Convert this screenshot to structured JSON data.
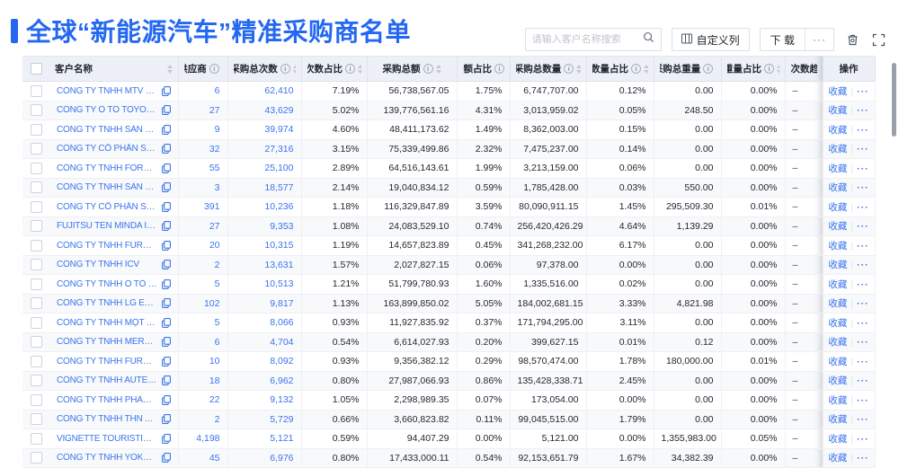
{
  "header": {
    "title": "全球“新能源汽车”精准采购商名单",
    "search_placeholder": "请输入客户名称搜索",
    "customize_columns_label": "自定义列",
    "download_label": "下 载",
    "toolbar_more_label": "···"
  },
  "icons": {
    "search": "magnifier",
    "customize_columns": "column-grid",
    "trash": "trash-can",
    "fullscreen": "expand-corners",
    "copy": "overlapping-squares",
    "info": "circled-i",
    "sort": "up-down-carets"
  },
  "colors": {
    "accent": "#2468f2",
    "link": "#3a74ee",
    "header_bg": "#edf0f6"
  },
  "table": {
    "columns": [
      {
        "key": "name",
        "label": "客户名称",
        "info": false,
        "sort": true
      },
      {
        "key": "supplier",
        "label": "供应商",
        "info": true,
        "sort": true
      },
      {
        "key": "purchases",
        "label": "采购总次数",
        "info": true,
        "sort": true
      },
      {
        "key": "purchase_pct",
        "label": "次数占比",
        "info": true,
        "sort": true
      },
      {
        "key": "amount",
        "label": "采购总额",
        "info": true,
        "sort": true
      },
      {
        "key": "amount_pct",
        "label": "总额占比",
        "info": true,
        "sort": true
      },
      {
        "key": "qty",
        "label": "采购总数量",
        "info": true,
        "sort": true
      },
      {
        "key": "qty_pct",
        "label": "数量占比",
        "info": true,
        "sort": true
      },
      {
        "key": "weight",
        "label": "采购总重量",
        "info": true,
        "sort": true
      },
      {
        "key": "weight_pct",
        "label": "重量占比",
        "info": true,
        "sort": true
      },
      {
        "key": "trend",
        "label": "次数趋势",
        "info": false,
        "sort": false
      },
      {
        "key": "ops",
        "label": "操作",
        "info": false,
        "sort": false
      }
    ],
    "row_actions": {
      "favorite": "收藏",
      "divider": "|",
      "more": "···"
    },
    "rows": [
      {
        "name": "CÔNG TY TNHH MTV SẢN XUẤ...",
        "supplier": "6",
        "purchases": "62,410",
        "purchase_pct": "7.19%",
        "amount": "56,738,567.05",
        "amount_pct": "1.75%",
        "qty": "6,747,707.00",
        "qty_pct": "0.12%",
        "weight": "0.00",
        "weight_pct": "0.00%",
        "trend": "–"
      },
      {
        "name": "CÔNG TY Ô TÔ TOYOTA VIỆT ...",
        "supplier": "27",
        "purchases": "43,629",
        "purchase_pct": "5.02%",
        "amount": "139,776,561.16",
        "amount_pct": "4.31%",
        "qty": "3,013,959.02",
        "qty_pct": "0.05%",
        "weight": "248.50",
        "weight_pct": "0.00%",
        "trend": "–"
      },
      {
        "name": "CÔNG TY TNHH SẢN XUẤT VÀ ...",
        "supplier": "9",
        "purchases": "39,974",
        "purchase_pct": "4.60%",
        "amount": "48,411,173.62",
        "amount_pct": "1.49%",
        "qty": "8,362,003.00",
        "qty_pct": "0.15%",
        "weight": "0.00",
        "weight_pct": "0.00%",
        "trend": "–"
      },
      {
        "name": "CÔNG TY CỔ PHẦN SẢN XUẤT...",
        "supplier": "32",
        "purchases": "27,316",
        "purchase_pct": "3.15%",
        "amount": "75,339,499.86",
        "amount_pct": "2.32%",
        "qty": "7,475,237.00",
        "qty_pct": "0.14%",
        "weight": "0.00",
        "weight_pct": "0.00%",
        "trend": "–"
      },
      {
        "name": "CÔNG TY TNHH FORD VIỆT NAM",
        "supplier": "55",
        "purchases": "25,100",
        "purchase_pct": "2.89%",
        "amount": "64,516,143.61",
        "amount_pct": "1.99%",
        "qty": "3,213,159.00",
        "qty_pct": "0.06%",
        "weight": "0.00",
        "weight_pct": "0.00%",
        "trend": "–"
      },
      {
        "name": "CÔNG TY TNHH SẢN XUẤT VÀ ...",
        "supplier": "3",
        "purchases": "18,577",
        "purchase_pct": "2.14%",
        "amount": "19,040,834.12",
        "amount_pct": "0.59%",
        "qty": "1,785,428.00",
        "qty_pct": "0.03%",
        "weight": "550.00",
        "weight_pct": "0.00%",
        "trend": "–"
      },
      {
        "name": "CÔNG TY CỔ PHẦN SẢN XUẤT...",
        "supplier": "391",
        "purchases": "10,236",
        "purchase_pct": "1.18%",
        "amount": "116,329,847.89",
        "amount_pct": "3.59%",
        "qty": "80,090,911.15",
        "qty_pct": "1.45%",
        "weight": "295,509.30",
        "weight_pct": "0.01%",
        "trend": "–"
      },
      {
        "name": "FUJITSU TEN MINDA INDIA PVT...",
        "supplier": "27",
        "purchases": "9,353",
        "purchase_pct": "1.08%",
        "amount": "24,083,529.10",
        "amount_pct": "0.74%",
        "qty": "256,420,426.29",
        "qty_pct": "4.64%",
        "weight": "1,139.29",
        "weight_pct": "0.00%",
        "trend": "–"
      },
      {
        "name": "CÔNG TY TNHH FURUKAWA A...",
        "supplier": "20",
        "purchases": "10,315",
        "purchase_pct": "1.19%",
        "amount": "14,657,823.89",
        "amount_pct": "0.45%",
        "qty": "341,268,232.00",
        "qty_pct": "6.17%",
        "weight": "0.00",
        "weight_pct": "0.00%",
        "trend": "–"
      },
      {
        "name": "CÔNG TY TNHH ICV",
        "supplier": "2",
        "purchases": "13,631",
        "purchase_pct": "1.57%",
        "amount": "2,027,827.15",
        "amount_pct": "0.06%",
        "qty": "97,378.00",
        "qty_pct": "0.00%",
        "weight": "0.00",
        "weight_pct": "0.00%",
        "trend": "–"
      },
      {
        "name": "CÔNG TY TNHH Ô TÔ MITSUBI...",
        "supplier": "5",
        "purchases": "10,513",
        "purchase_pct": "1.21%",
        "amount": "51,799,780.93",
        "amount_pct": "1.60%",
        "qty": "1,335,516.00",
        "qty_pct": "0.02%",
        "weight": "0.00",
        "weight_pct": "0.00%",
        "trend": "–"
      },
      {
        "name": "CÔNG TY TNHH LG ELECTRON...",
        "supplier": "102",
        "purchases": "9,817",
        "purchase_pct": "1.13%",
        "amount": "163,899,850.02",
        "amount_pct": "5.05%",
        "qty": "184,002,681.15",
        "qty_pct": "3.33%",
        "weight": "4,821.98",
        "weight_pct": "0.00%",
        "trend": "–"
      },
      {
        "name": "CÔNG TY TNHH MỘT THÀNH V...",
        "supplier": "5",
        "purchases": "8,066",
        "purchase_pct": "0.93%",
        "amount": "11,927,835.92",
        "amount_pct": "0.37%",
        "qty": "171,794,295.00",
        "qty_pct": "3.11%",
        "weight": "0.00",
        "weight_pct": "0.00%",
        "trend": "–"
      },
      {
        "name": "CÔNG TY TNHH MERCEDES–B...",
        "supplier": "6",
        "purchases": "4,704",
        "purchase_pct": "0.54%",
        "amount": "6,614,027.93",
        "amount_pct": "0.20%",
        "qty": "399,627.15",
        "qty_pct": "0.01%",
        "weight": "0.12",
        "weight_pct": "0.00%",
        "trend": "–"
      },
      {
        "name": "CÔNG TY TNHH FURUKAWA A...",
        "supplier": "10",
        "purchases": "8,092",
        "purchase_pct": "0.93%",
        "amount": "9,356,382.12",
        "amount_pct": "0.29%",
        "qty": "98,570,474.00",
        "qty_pct": "1.78%",
        "weight": "180,000.00",
        "weight_pct": "0.01%",
        "trend": "–"
      },
      {
        "name": "CÔNG TY TNHH AUTEL VIỆT N...",
        "supplier": "18",
        "purchases": "6,962",
        "purchase_pct": "0.80%",
        "amount": "27,987,066.93",
        "amount_pct": "0.86%",
        "qty": "135,428,338.71",
        "qty_pct": "2.45%",
        "weight": "0.00",
        "weight_pct": "0.00%",
        "trend": "–"
      },
      {
        "name": "CÔNG TY TNHH PHÂN PHỐI T...",
        "supplier": "22",
        "purchases": "9,132",
        "purchase_pct": "1.05%",
        "amount": "2,298,989.35",
        "amount_pct": "0.07%",
        "qty": "173,054.00",
        "qty_pct": "0.00%",
        "weight": "0.00",
        "weight_pct": "0.00%",
        "trend": "–"
      },
      {
        "name": "CÔNG TY TNHH THN AUTOPAR...",
        "supplier": "2",
        "purchases": "5,729",
        "purchase_pct": "0.66%",
        "amount": "3,660,823.82",
        "amount_pct": "0.11%",
        "qty": "99,045,515.00",
        "qty_pct": "1.79%",
        "weight": "0.00",
        "weight_pct": "0.00%",
        "trend": "–"
      },
      {
        "name": "VIGNETTE TOURISTIQUE G UNI...",
        "supplier": "4,198",
        "purchases": "5,121",
        "purchase_pct": "0.59%",
        "amount": "94,407.29",
        "amount_pct": "0.00%",
        "qty": "5,121.00",
        "qty_pct": "0.00%",
        "weight": "1,355,983.00",
        "weight_pct": "0.05%",
        "trend": "–"
      },
      {
        "name": "CÔNG TY TNHH YOKOWO VIỆT...",
        "supplier": "45",
        "purchases": "6,976",
        "purchase_pct": "0.80%",
        "amount": "17,433,000.11",
        "amount_pct": "0.54%",
        "qty": "92,153,651.79",
        "qty_pct": "1.67%",
        "weight": "34,382.39",
        "weight_pct": "0.00%",
        "trend": "–"
      }
    ]
  }
}
